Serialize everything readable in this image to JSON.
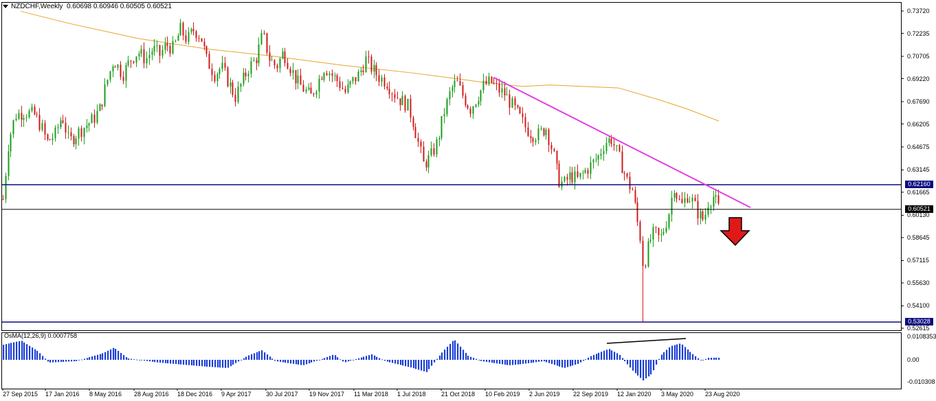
{
  "header": {
    "symbol": "NZDCHF,Weekly",
    "ohlc": "0.60698 0.60946 0.60505 0.60521"
  },
  "indicator": {
    "label": "OsMA(12,26,9) 0.0007758",
    "ticks": [
      "0.0108353",
      "0.00",
      "-0.010308"
    ]
  },
  "price_axis": {
    "ticks": [
      "0.73720",
      "0.72235",
      "0.70705",
      "0.69220",
      "0.67690",
      "0.66205",
      "0.64675",
      "0.63145",
      "0.61665",
      "0.60130",
      "0.58645",
      "0.57115",
      "0.55630",
      "0.54100",
      "0.52615"
    ],
    "tags": {
      "resistance": "0.62160",
      "current": "0.60521",
      "support": "0.53028"
    }
  },
  "time_axis": {
    "labels": [
      "27 Sep 2015",
      "17 Jan 2016",
      "8 May 2016",
      "28 Aug 2016",
      "18 Dec 2016",
      "9 Apr 2017",
      "30 Jul 2017",
      "19 Nov 2017",
      "11 Mar 2018",
      "1 Jul 2018",
      "21 Oct 2018",
      "10 Feb 2019",
      "2 Jun 2019",
      "22 Sep 2019",
      "12 Jan 2020",
      "3 May 2020",
      "23 Aug 2020"
    ]
  },
  "colors": {
    "bull": "#1a9e1a",
    "bear": "#d11a1a",
    "ma": "#e6a52a",
    "trendline": "#e040e0",
    "hline": "#0b0b80",
    "osma": "#1a3fd6",
    "arrow": "#e01818"
  },
  "chart_data": {
    "type": "candlestick",
    "symbol": "NZDCHF",
    "timeframe": "Weekly",
    "last": {
      "open": 0.60698,
      "high": 0.60946,
      "low": 0.60505,
      "close": 0.60521
    },
    "horizontal_levels": [
      0.6216,
      0.60521,
      0.53028
    ],
    "price_range": [
      0.52615,
      0.7372
    ],
    "trend": "downtrend with descending resistance line",
    "oscillator": {
      "name": "OsMA(12,26,9)",
      "value": 0.0007758,
      "range": [
        -0.010308,
        0.0108353
      ]
    }
  }
}
